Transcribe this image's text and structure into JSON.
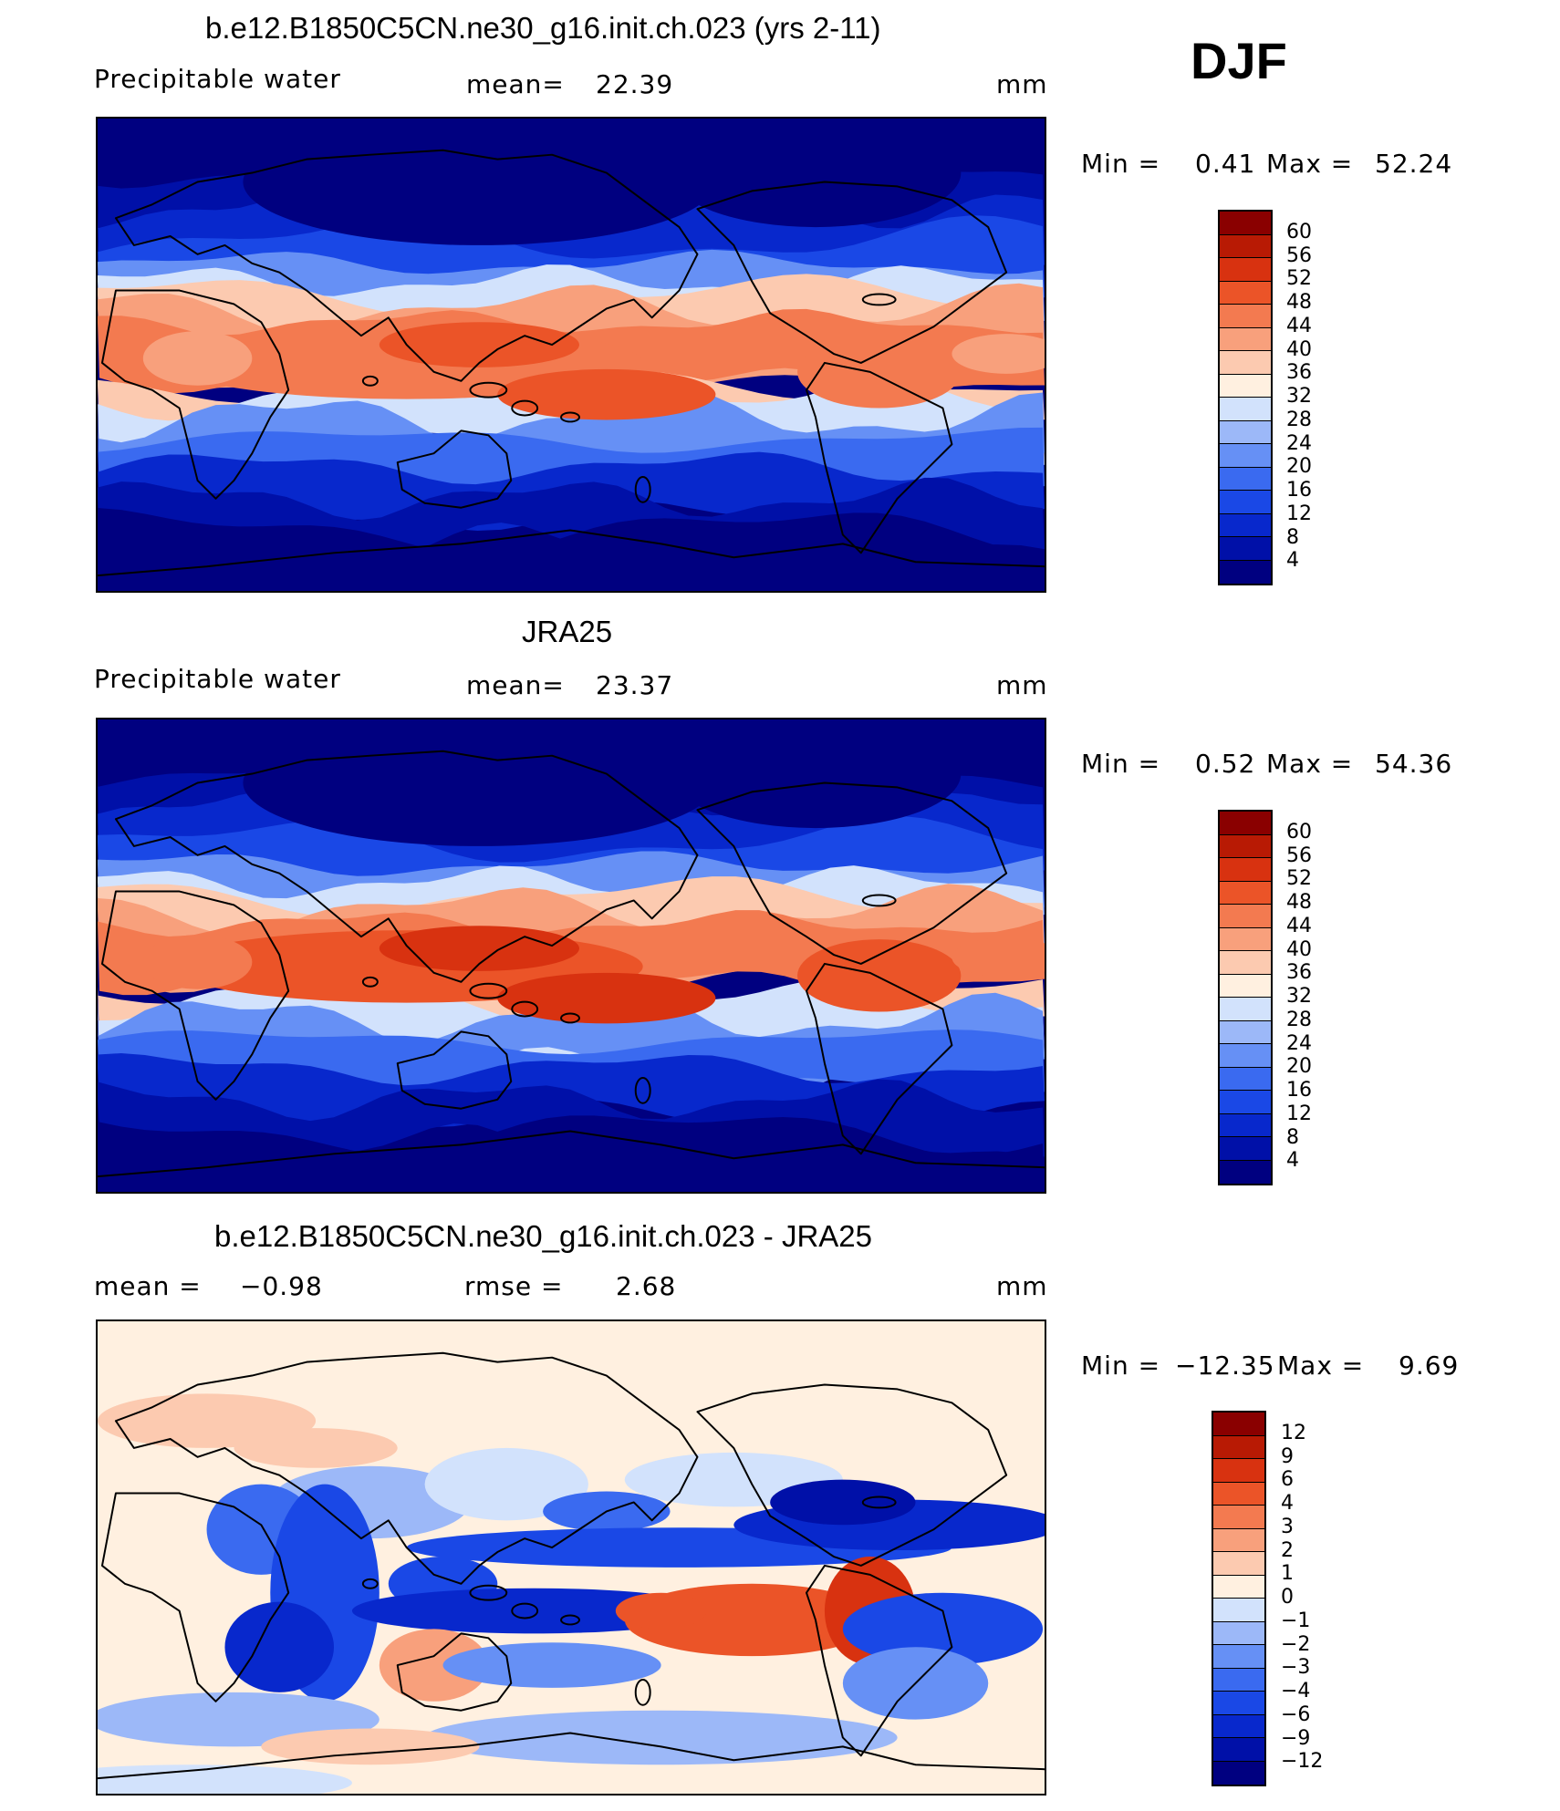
{
  "season": "DJF",
  "units": "mm",
  "panels": [
    {
      "title": "b.e12.B1850C5CN.ne30_g16.init.ch.023 (yrs 2-11)",
      "variable": "Precipitable water",
      "stat_label": "mean=",
      "stat_value": "22.39",
      "units": "mm",
      "min_label": "Min =",
      "min_value": "0.41",
      "max_label": "Max =",
      "max_value": "52.24"
    },
    {
      "title": "JRA25",
      "variable": "Precipitable water",
      "stat_label": "mean=",
      "stat_value": "23.37",
      "units": "mm",
      "min_label": "Min =",
      "min_value": "0.52",
      "max_label": "Max =",
      "max_value": "54.36"
    },
    {
      "title": "b.e12.B1850C5CN.ne30_g16.init.ch.023 - JRA25",
      "stat_label": "mean =",
      "stat_value": "−0.98",
      "stat2_label": "rmse =",
      "stat2_value": "2.68",
      "units": "mm",
      "min_label": "Min =",
      "min_value": "−12.35",
      "max_label": "Max =",
      "max_value": "9.69"
    }
  ],
  "chart_data": [
    {
      "type": "heatmap",
      "title": "b.e12.B1850C5CN.ne30_g16.init.ch.023 (yrs 2-11)",
      "variable": "Precipitable water",
      "units": "mm",
      "mean": 22.39,
      "min": 0.41,
      "max": 52.24,
      "colorbar_levels": [
        4,
        8,
        12,
        16,
        20,
        24,
        28,
        32,
        36,
        40,
        44,
        48,
        52,
        56,
        60
      ],
      "colorbar_colors": [
        "#000080",
        "#0010a8",
        "#0828cc",
        "#1a48e6",
        "#3a6af0",
        "#6690f5",
        "#9cb8f8",
        "#d2e2fc",
        "#fff0e0",
        "#fccab0",
        "#f8a07c",
        "#f37a50",
        "#eb5428",
        "#d83210",
        "#b81a04",
        "#8a0000"
      ]
    },
    {
      "type": "heatmap",
      "title": "JRA25",
      "variable": "Precipitable water",
      "units": "mm",
      "mean": 23.37,
      "min": 0.52,
      "max": 54.36,
      "colorbar_levels": [
        4,
        8,
        12,
        16,
        20,
        24,
        28,
        32,
        36,
        40,
        44,
        48,
        52,
        56,
        60
      ],
      "colorbar_colors": [
        "#000080",
        "#0010a8",
        "#0828cc",
        "#1a48e6",
        "#3a6af0",
        "#6690f5",
        "#9cb8f8",
        "#d2e2fc",
        "#fff0e0",
        "#fccab0",
        "#f8a07c",
        "#f37a50",
        "#eb5428",
        "#d83210",
        "#b81a04",
        "#8a0000"
      ]
    },
    {
      "type": "heatmap",
      "title": "b.e12.B1850C5CN.ne30_g16.init.ch.023 - JRA25",
      "units": "mm",
      "mean": -0.98,
      "rmse": 2.68,
      "min": -12.35,
      "max": 9.69,
      "colorbar_levels": [
        "12",
        "9",
        "6",
        "4",
        "3",
        "2",
        "1",
        "0",
        "−1",
        "−2",
        "−3",
        "−4",
        "−6",
        "−9",
        "−12"
      ],
      "colorbar_colors": [
        "#000080",
        "#0010a8",
        "#0828cc",
        "#1a48e6",
        "#3a6af0",
        "#6690f5",
        "#9cb8f8",
        "#d2e2fc",
        "#fff0e0",
        "#fccab0",
        "#f8a07c",
        "#f37a50",
        "#eb5428",
        "#d83210",
        "#b81a04",
        "#8a0000"
      ]
    }
  ]
}
